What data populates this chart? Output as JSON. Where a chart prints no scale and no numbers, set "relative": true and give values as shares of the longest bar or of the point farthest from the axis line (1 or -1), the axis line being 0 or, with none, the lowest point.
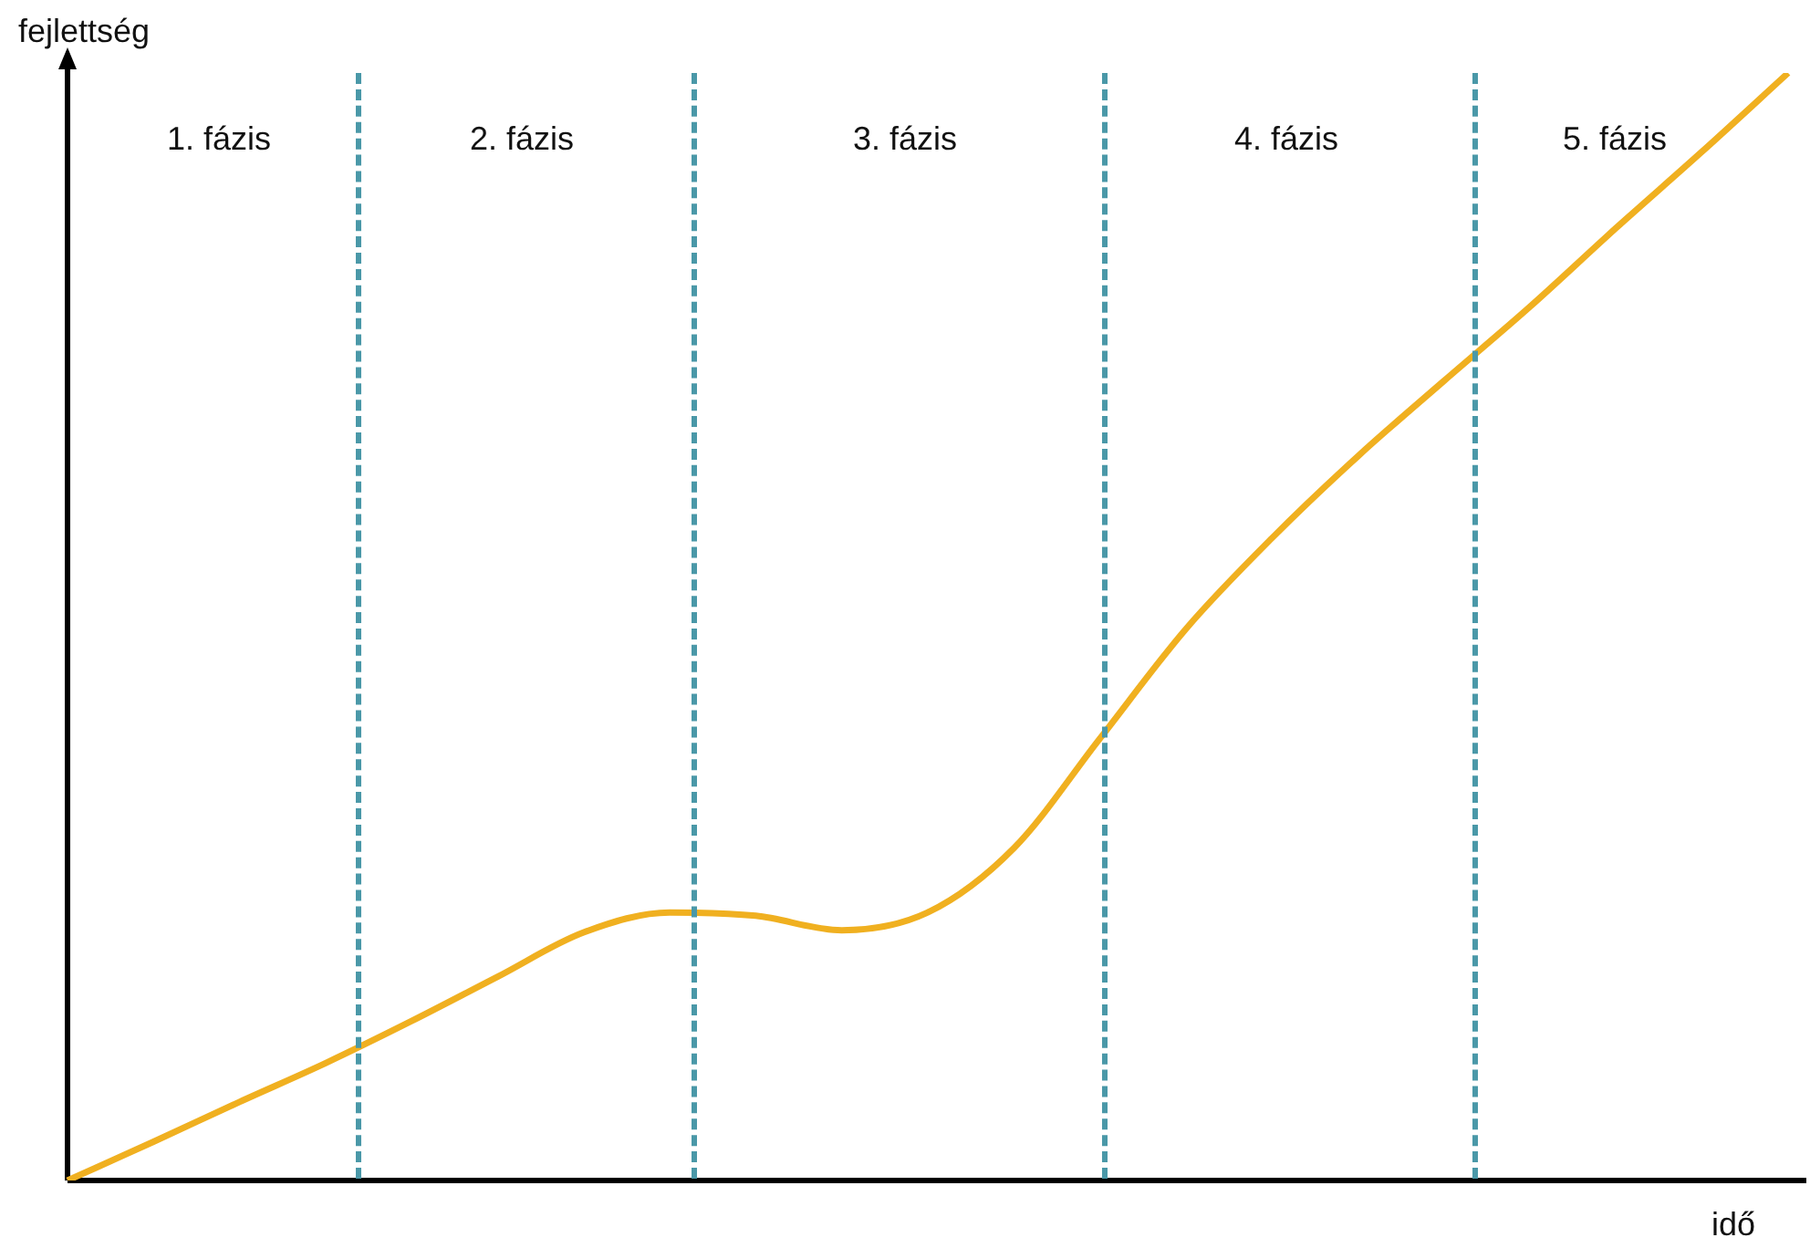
{
  "chart_data": {
    "type": "line",
    "relative": true,
    "xlabel": "idő",
    "ylabel": "fejlettség",
    "categories": [
      null,
      null,
      null,
      null,
      null,
      null,
      null,
      null,
      null,
      null,
      null,
      null,
      null,
      null,
      null,
      null,
      null,
      null,
      null,
      null,
      null
    ],
    "series": [
      {
        "color": "#f0b020",
        "values": [
          0,
          0.035,
          0.071,
          0.106,
          0.144,
          0.184,
          0.224,
          0.242,
          0.239,
          0.226,
          0.242,
          0.3,
          0.399,
          0.498,
          0.58,
          0.654,
          0.722,
          0.789,
          0.86,
          0.929,
          1
        ]
      }
    ],
    "annotations": [
      "1. fázis",
      "2. fázis",
      "3. fázis",
      "4. fázis",
      "5. fázis"
    ],
    "legend": false,
    "marker": "none",
    "line_style": "solid"
  }
}
